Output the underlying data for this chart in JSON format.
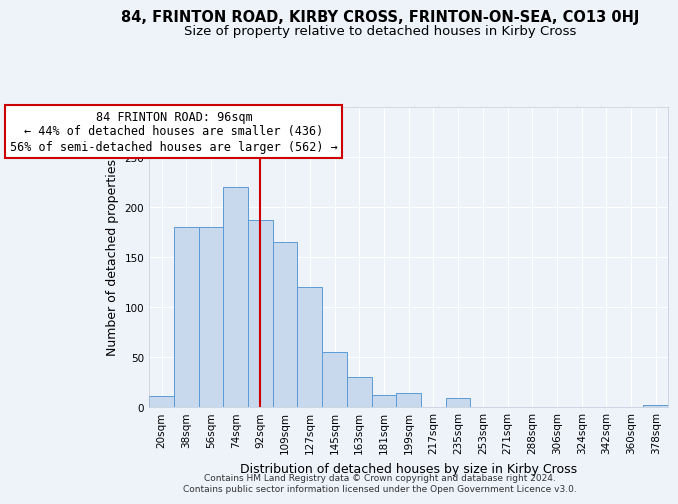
{
  "title": "84, FRINTON ROAD, KIRBY CROSS, FRINTON-ON-SEA, CO13 0HJ",
  "subtitle": "Size of property relative to detached houses in Kirby Cross",
  "xlabel": "Distribution of detached houses by size in Kirby Cross",
  "ylabel": "Number of detached properties",
  "bar_labels": [
    "20sqm",
    "38sqm",
    "56sqm",
    "74sqm",
    "92sqm",
    "109sqm",
    "127sqm",
    "145sqm",
    "163sqm",
    "181sqm",
    "199sqm",
    "217sqm",
    "235sqm",
    "253sqm",
    "271sqm",
    "288sqm",
    "306sqm",
    "324sqm",
    "342sqm",
    "360sqm",
    "378sqm"
  ],
  "bar_values": [
    11,
    180,
    180,
    220,
    187,
    165,
    120,
    55,
    30,
    12,
    14,
    0,
    9,
    0,
    0,
    0,
    0,
    0,
    0,
    0,
    2
  ],
  "bar_color": "#c8d9ed",
  "bar_edge_color": "#5b9bd5",
  "bar_width": 1.0,
  "ylim": [
    0,
    300
  ],
  "yticks": [
    0,
    50,
    100,
    150,
    200,
    250,
    300
  ],
  "vline_x": 4,
  "vline_color": "#cc0000",
  "annotation_title": "84 FRINTON ROAD: 96sqm",
  "annotation_line1": "← 44% of detached houses are smaller (436)",
  "annotation_line2": "56% of semi-detached houses are larger (562) →",
  "annotation_box_edge": "#cc0000",
  "footer1": "Contains HM Land Registry data © Crown copyright and database right 2024.",
  "footer2": "Contains public sector information licensed under the Open Government Licence v3.0.",
  "bg_color": "#eef2f9",
  "grid_color": "#ffffff",
  "title_fontsize": 10.5,
  "subtitle_fontsize": 9.5,
  "axis_label_fontsize": 9,
  "tick_fontsize": 7.5,
  "annotation_fontsize": 8.5,
  "footer_fontsize": 6.5
}
